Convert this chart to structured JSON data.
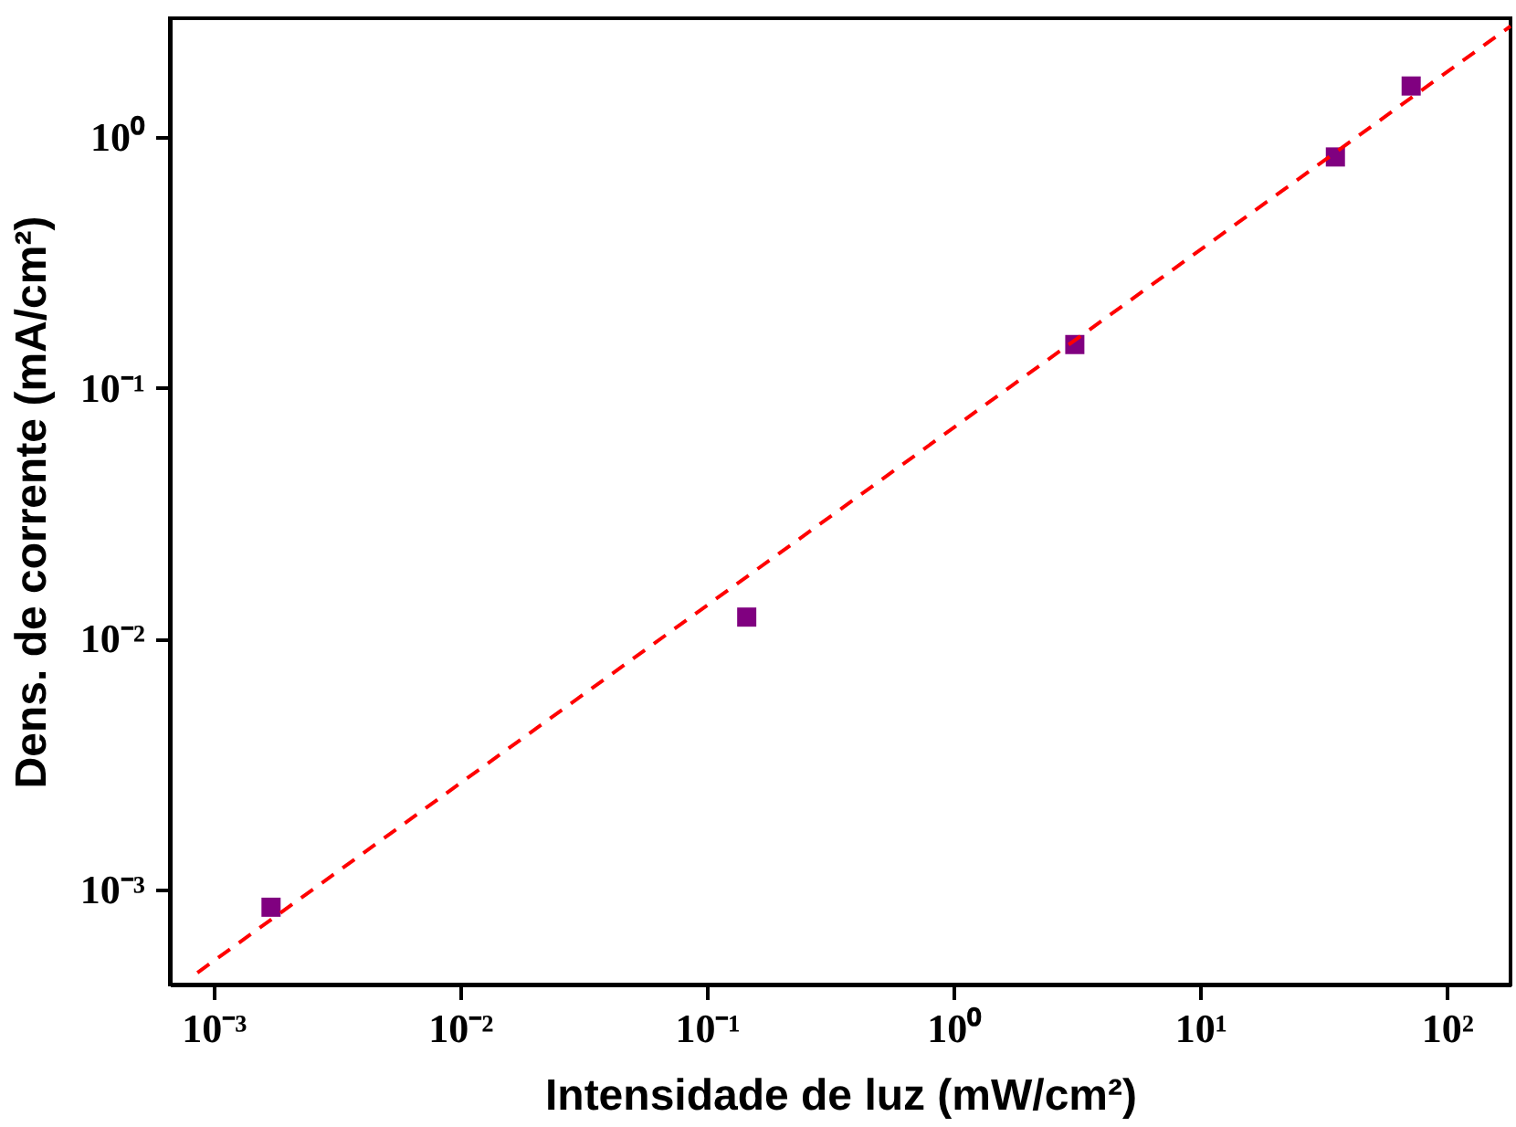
{
  "chart_data": {
    "type": "scatter",
    "xlabel": "Intensidade de luz (mW/cm²)",
    "ylabel": "Dens. de corrente (mA/cm²)",
    "log": "xy",
    "grid": false,
    "xlim": [
      0.000665,
      181
    ],
    "ylim": [
      0.000418,
      2.98
    ],
    "xticks": [
      {
        "value": 0.001,
        "label": "10⁻³"
      },
      {
        "value": 0.01,
        "label": "10⁻²"
      },
      {
        "value": 0.1,
        "label": "10⁻¹"
      },
      {
        "value": 1,
        "label": "10⁰"
      },
      {
        "value": 10,
        "label": "10¹"
      },
      {
        "value": 100,
        "label": "10²"
      }
    ],
    "yticks": [
      {
        "value": 0.001,
        "label": "10⁻³"
      },
      {
        "value": 0.01,
        "label": "10⁻²"
      },
      {
        "value": 0.1,
        "label": "10⁻¹"
      },
      {
        "value": 1,
        "label": "10⁰"
      }
    ],
    "series": [
      {
        "type": "scatter",
        "color": "#800080",
        "marker": "square",
        "x": [
          0.00171,
          0.145,
          3.1,
          35.3,
          71.6
        ],
        "values": [
          0.00085,
          0.0122,
          0.149,
          0.834,
          1.6
        ]
      },
      {
        "type": "line",
        "color": "#ff0000",
        "line_style": "dashed",
        "marker": "none",
        "x": [
          0.00086,
          181
        ],
        "values": [
          0.000466,
          2.77
        ]
      }
    ]
  }
}
